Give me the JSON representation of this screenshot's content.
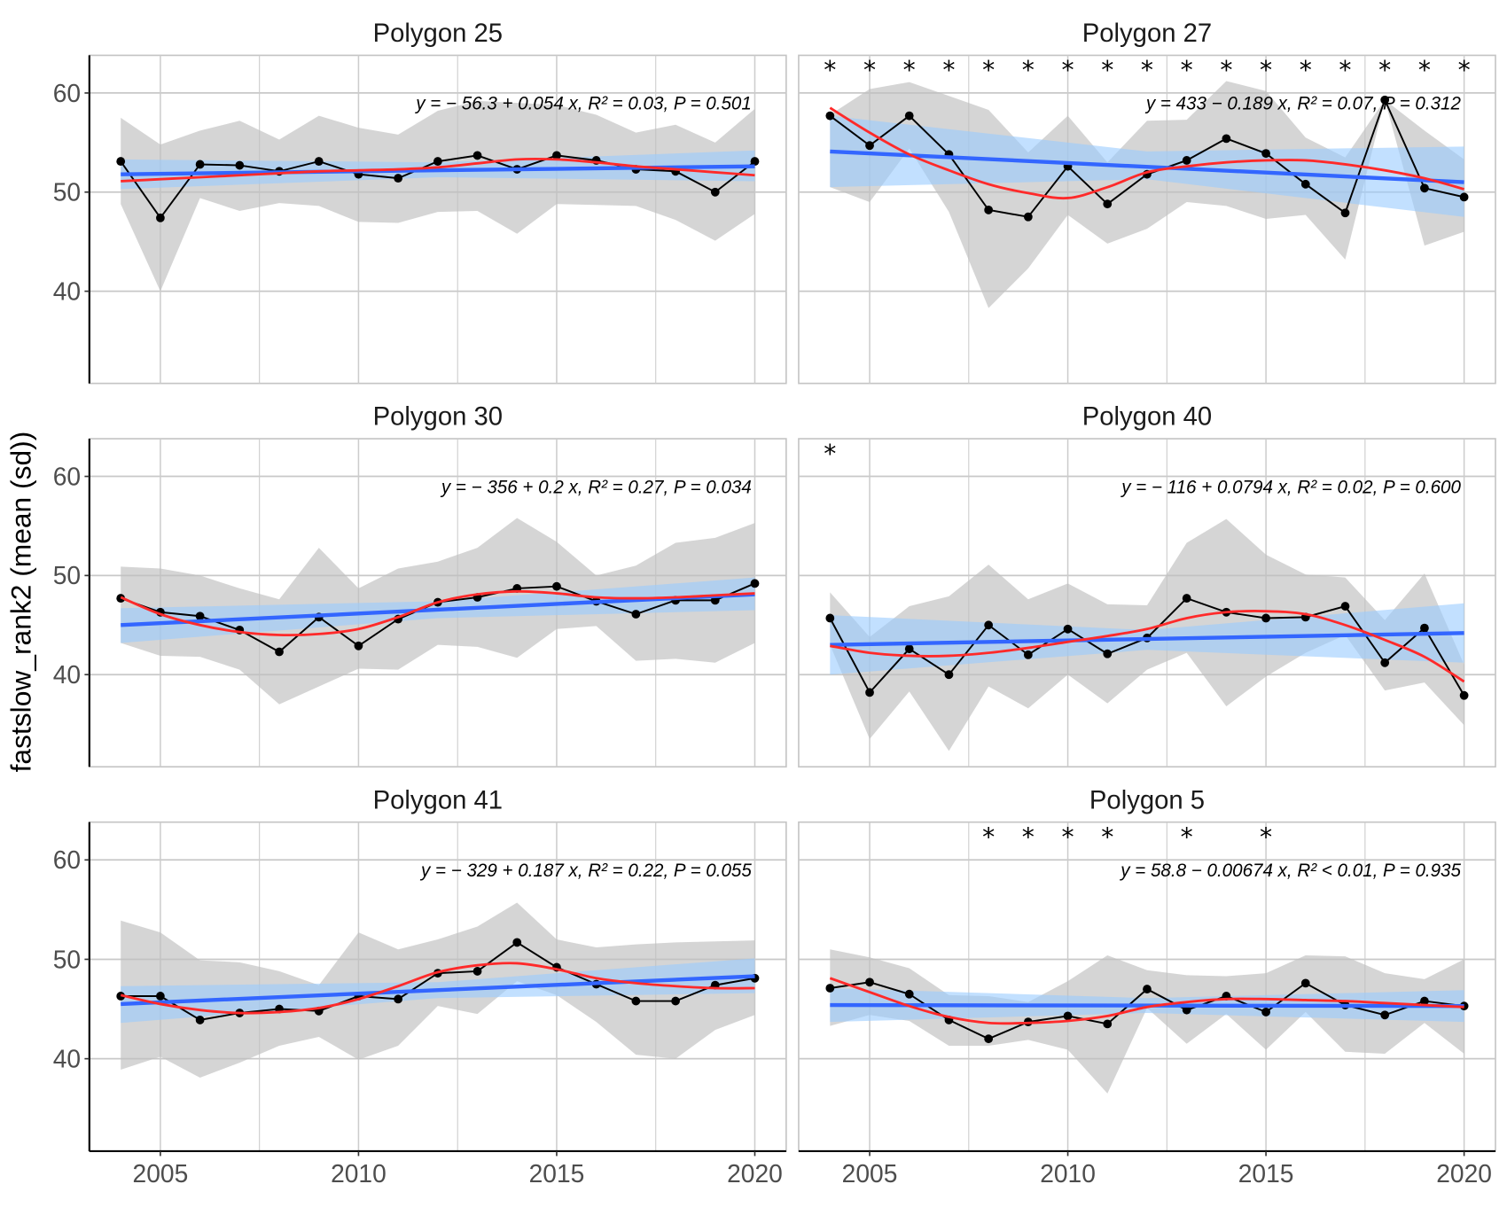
{
  "chart_data": {
    "type": "line",
    "ylabel": "fastslow_rank2 (mean (sd))",
    "xlabel": "",
    "x": [
      2004,
      2005,
      2006,
      2007,
      2008,
      2009,
      2010,
      2011,
      2012,
      2013,
      2014,
      2015,
      2016,
      2017,
      2018,
      2019,
      2020
    ],
    "xticks": [
      2005,
      2010,
      2015,
      2020
    ],
    "yticks": [
      40,
      50,
      60
    ],
    "ylim": [
      30.7,
      63.8
    ],
    "grid": true,
    "colors": {
      "mean_line": "#000000",
      "ribbon_sd": "#bebebe",
      "lm_line": "#3366ff",
      "lm_ci": "#99ccff",
      "loess": "#ff2a2a"
    },
    "panels": [
      {
        "title": "Polygon 25",
        "equation": "y = − 56.3 + 0.054 x, R² = 0.03, P = 0.501",
        "mean": [
          53.1,
          47.4,
          52.8,
          52.7,
          52.1,
          53.1,
          51.8,
          51.4,
          53.1,
          53.7,
          52.3,
          53.7,
          53.2,
          52.3,
          52.1,
          50.0,
          53.1
        ],
        "sd_upper": [
          57.5,
          54.8,
          56.2,
          57.2,
          55.3,
          57.7,
          56.5,
          55.8,
          58.2,
          59.2,
          59.0,
          58.8,
          57.8,
          56.0,
          56.8,
          55.0,
          58.4
        ],
        "sd_lower": [
          48.8,
          40.0,
          49.4,
          48.1,
          48.9,
          48.6,
          47.0,
          46.9,
          48.0,
          48.1,
          45.8,
          48.8,
          48.7,
          48.6,
          47.2,
          45.1,
          47.8
        ],
        "lm_fit": [
          51.8,
          52.6
        ],
        "lm_ci_start": [
          50.3,
          53.3
        ],
        "lm_ci_mid": [
          51.5,
          53.0
        ],
        "lm_ci_end": [
          51.1,
          54.2
        ],
        "loess": [
          51.1,
          51.3,
          51.5,
          51.7,
          51.9,
          52.1,
          52.2,
          52.3,
          52.5,
          52.9,
          53.3,
          53.3,
          53.0,
          52.6,
          52.3,
          52.0,
          51.7
        ],
        "stars": []
      },
      {
        "title": "Polygon 27",
        "equation": "y = 433 − 0.189 x, R² = 0.07, P = 0.312",
        "mean": [
          57.7,
          54.7,
          57.7,
          53.8,
          48.2,
          47.5,
          52.6,
          48.8,
          51.8,
          53.2,
          55.4,
          53.9,
          50.8,
          47.9,
          59.3,
          50.4,
          49.5
        ],
        "sd_upper": [
          57.8,
          60.4,
          61.1,
          59.7,
          58.3,
          54.0,
          57.7,
          53.0,
          57.2,
          57.3,
          61.2,
          60.2,
          55.5,
          53.5,
          59.3,
          56.2,
          53.3
        ],
        "sd_lower": [
          50.5,
          49.0,
          54.4,
          48.0,
          38.3,
          42.3,
          47.7,
          44.8,
          46.3,
          49.0,
          48.6,
          47.3,
          47.7,
          43.2,
          59.3,
          44.6,
          46.0
        ],
        "lm_fit": [
          54.1,
          51.0
        ],
        "lm_ci_start": [
          50.5,
          57.7
        ],
        "lm_ci_mid": [
          51.3,
          54.1
        ],
        "lm_ci_end": [
          47.5,
          54.6
        ],
        "loess": [
          58.5,
          56.0,
          53.8,
          52.2,
          50.8,
          49.9,
          49.4,
          50.5,
          52.0,
          52.6,
          53.0,
          53.2,
          53.2,
          52.8,
          52.2,
          51.4,
          50.3
        ],
        "stars": [
          2004,
          2005,
          2006,
          2007,
          2008,
          2009,
          2010,
          2011,
          2012,
          2013,
          2014,
          2015,
          2016,
          2017,
          2018,
          2019,
          2020
        ]
      },
      {
        "title": "Polygon 30",
        "equation": "y = − 356 + 0.2 x, R² = 0.27, P = 0.034",
        "mean": [
          47.7,
          46.3,
          45.9,
          44.5,
          42.3,
          45.8,
          42.9,
          45.6,
          47.3,
          47.8,
          48.7,
          48.9,
          47.4,
          46.1,
          47.5,
          47.5,
          49.2
        ],
        "sd_upper": [
          50.9,
          50.7,
          50.0,
          48.7,
          47.6,
          52.8,
          48.7,
          50.7,
          51.4,
          52.8,
          55.8,
          53.4,
          50.0,
          51.0,
          53.3,
          53.8,
          55.3
        ],
        "sd_lower": [
          43.2,
          41.9,
          41.8,
          40.5,
          37.0,
          38.8,
          40.6,
          40.5,
          43.0,
          42.8,
          41.7,
          44.6,
          44.9,
          41.4,
          41.6,
          41.2,
          43.2
        ],
        "lm_fit": [
          45.0,
          48.1
        ],
        "lm_ci_start": [
          43.2,
          46.7
        ],
        "lm_ci_mid": [
          45.7,
          47.4
        ],
        "lm_ci_end": [
          46.5,
          49.8
        ],
        "loess": [
          47.8,
          46.1,
          45.0,
          44.3,
          44.0,
          44.1,
          44.6,
          45.8,
          47.3,
          48.1,
          48.4,
          48.2,
          47.8,
          47.7,
          47.8,
          48.0,
          48.2
        ],
        "stars": []
      },
      {
        "title": "Polygon 40",
        "equation": "y = − 116 + 0.0794 x, R² = 0.02, P = 0.600",
        "mean": [
          45.7,
          38.2,
          42.6,
          40.0,
          45.0,
          42.0,
          44.6,
          42.1,
          43.7,
          47.7,
          46.3,
          45.7,
          45.8,
          46.9,
          41.2,
          44.7,
          37.9
        ],
        "sd_upper": [
          48.3,
          43.8,
          46.9,
          47.9,
          51.1,
          47.6,
          49.2,
          47.1,
          47.0,
          53.3,
          55.7,
          52.1,
          50.1,
          49.8,
          45.5,
          50.2,
          41.0
        ],
        "sd_lower": [
          43.0,
          33.5,
          38.3,
          32.3,
          38.8,
          36.6,
          40.0,
          37.1,
          40.5,
          42.2,
          36.8,
          39.8,
          42.2,
          44.0,
          38.4,
          39.2,
          34.9
        ],
        "lm_fit": [
          43.0,
          44.2
        ],
        "lm_ci_start": [
          40.0,
          46.0
        ],
        "lm_ci_mid": [
          42.5,
          44.5
        ],
        "lm_ci_end": [
          41.2,
          47.2
        ],
        "loess": [
          42.9,
          42.2,
          41.9,
          41.9,
          42.2,
          42.7,
          43.3,
          43.9,
          44.6,
          45.7,
          46.3,
          46.4,
          46.1,
          45.0,
          43.5,
          41.8,
          39.3
        ],
        "stars": [
          2004
        ]
      },
      {
        "title": "Polygon 41",
        "equation": "y = − 329 + 0.187 x, R² = 0.22, P = 0.055",
        "mean": [
          46.3,
          46.3,
          43.9,
          44.6,
          45.0,
          44.8,
          46.3,
          46.0,
          48.6,
          48.8,
          51.7,
          49.2,
          47.5,
          45.8,
          45.8,
          47.4,
          48.1
        ],
        "sd_upper": [
          53.9,
          52.7,
          49.9,
          49.7,
          48.8,
          47.4,
          52.7,
          51.0,
          52.0,
          53.3,
          55.7,
          52.0,
          51.2,
          51.5,
          51.7,
          51.8,
          51.9
        ],
        "sd_lower": [
          38.9,
          40.2,
          38.1,
          39.6,
          41.3,
          42.2,
          39.9,
          41.3,
          45.3,
          44.5,
          47.8,
          46.4,
          43.7,
          40.4,
          40.0,
          42.9,
          44.4
        ],
        "lm_fit": [
          45.5,
          48.3
        ],
        "lm_ci_start": [
          43.6,
          47.3
        ],
        "lm_ci_mid": [
          46.1,
          47.7
        ],
        "lm_ci_end": [
          46.6,
          50.1
        ],
        "loess": [
          46.4,
          45.5,
          44.9,
          44.6,
          44.7,
          45.1,
          46.0,
          47.3,
          48.7,
          49.4,
          49.6,
          49.0,
          48.1,
          47.6,
          47.3,
          47.1,
          47.1
        ],
        "stars": []
      },
      {
        "title": "Polygon 5",
        "equation": "y = 58.8 − 0.00674 x, R² < 0.01, P = 0.935",
        "mean": [
          47.1,
          47.7,
          46.5,
          43.9,
          42.0,
          43.7,
          44.3,
          43.5,
          47.0,
          44.9,
          46.3,
          44.7,
          47.6,
          45.4,
          44.4,
          45.8,
          45.3
        ],
        "sd_upper": [
          51.0,
          50.2,
          49.1,
          46.4,
          46.3,
          45.7,
          47.8,
          50.4,
          48.9,
          48.4,
          48.3,
          48.6,
          50.4,
          50.3,
          48.6,
          48.0,
          50.0
        ],
        "sd_lower": [
          43.3,
          44.4,
          43.8,
          41.3,
          41.3,
          41.9,
          40.9,
          36.5,
          45.1,
          41.5,
          44.5,
          40.9,
          44.7,
          40.7,
          40.5,
          43.6,
          40.5
        ],
        "lm_fit": [
          45.4,
          45.3
        ],
        "lm_ci_start": [
          43.7,
          47.1
        ],
        "lm_ci_mid": [
          44.6,
          46.1
        ],
        "lm_ci_end": [
          43.7,
          46.9
        ],
        "loess": [
          48.1,
          46.7,
          45.3,
          44.2,
          43.6,
          43.6,
          43.8,
          44.3,
          45.2,
          45.7,
          46.0,
          46.0,
          45.9,
          45.8,
          45.6,
          45.4,
          45.2
        ],
        "stars": [
          2008,
          2009,
          2010,
          2011,
          2013,
          2015
        ]
      }
    ]
  }
}
